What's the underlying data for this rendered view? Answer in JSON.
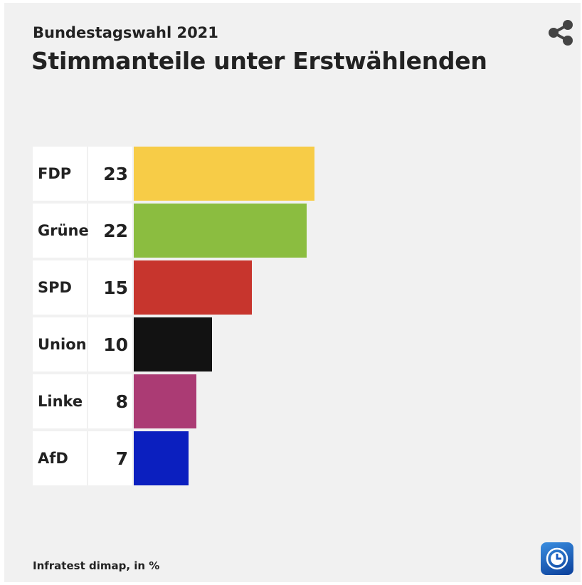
{
  "header": {
    "subtitle": "Bundestagswahl 2021",
    "title": "Stimmanteile unter Erstwählenden"
  },
  "footer": {
    "source": "Infratest dimap, in %"
  },
  "icons": {
    "share": "share-icon",
    "logo": "tagesschau-logo"
  },
  "chart_data": {
    "type": "bar",
    "orientation": "horizontal",
    "title": "Stimmanteile unter Erstwählenden",
    "subtitle": "Bundestagswahl 2021",
    "xlabel": "",
    "ylabel": "",
    "unit": "%",
    "xlim": [
      0,
      23
    ],
    "categories": [
      "FDP",
      "Grüne",
      "SPD",
      "Union",
      "Linke",
      "AfD"
    ],
    "values": [
      23,
      22,
      15,
      10,
      8,
      7
    ],
    "colors": [
      "#f7cc47",
      "#8bbd40",
      "#c7352d",
      "#121212",
      "#ab3b74",
      "#0b1fbf"
    ],
    "grid": false,
    "legend": "none"
  }
}
